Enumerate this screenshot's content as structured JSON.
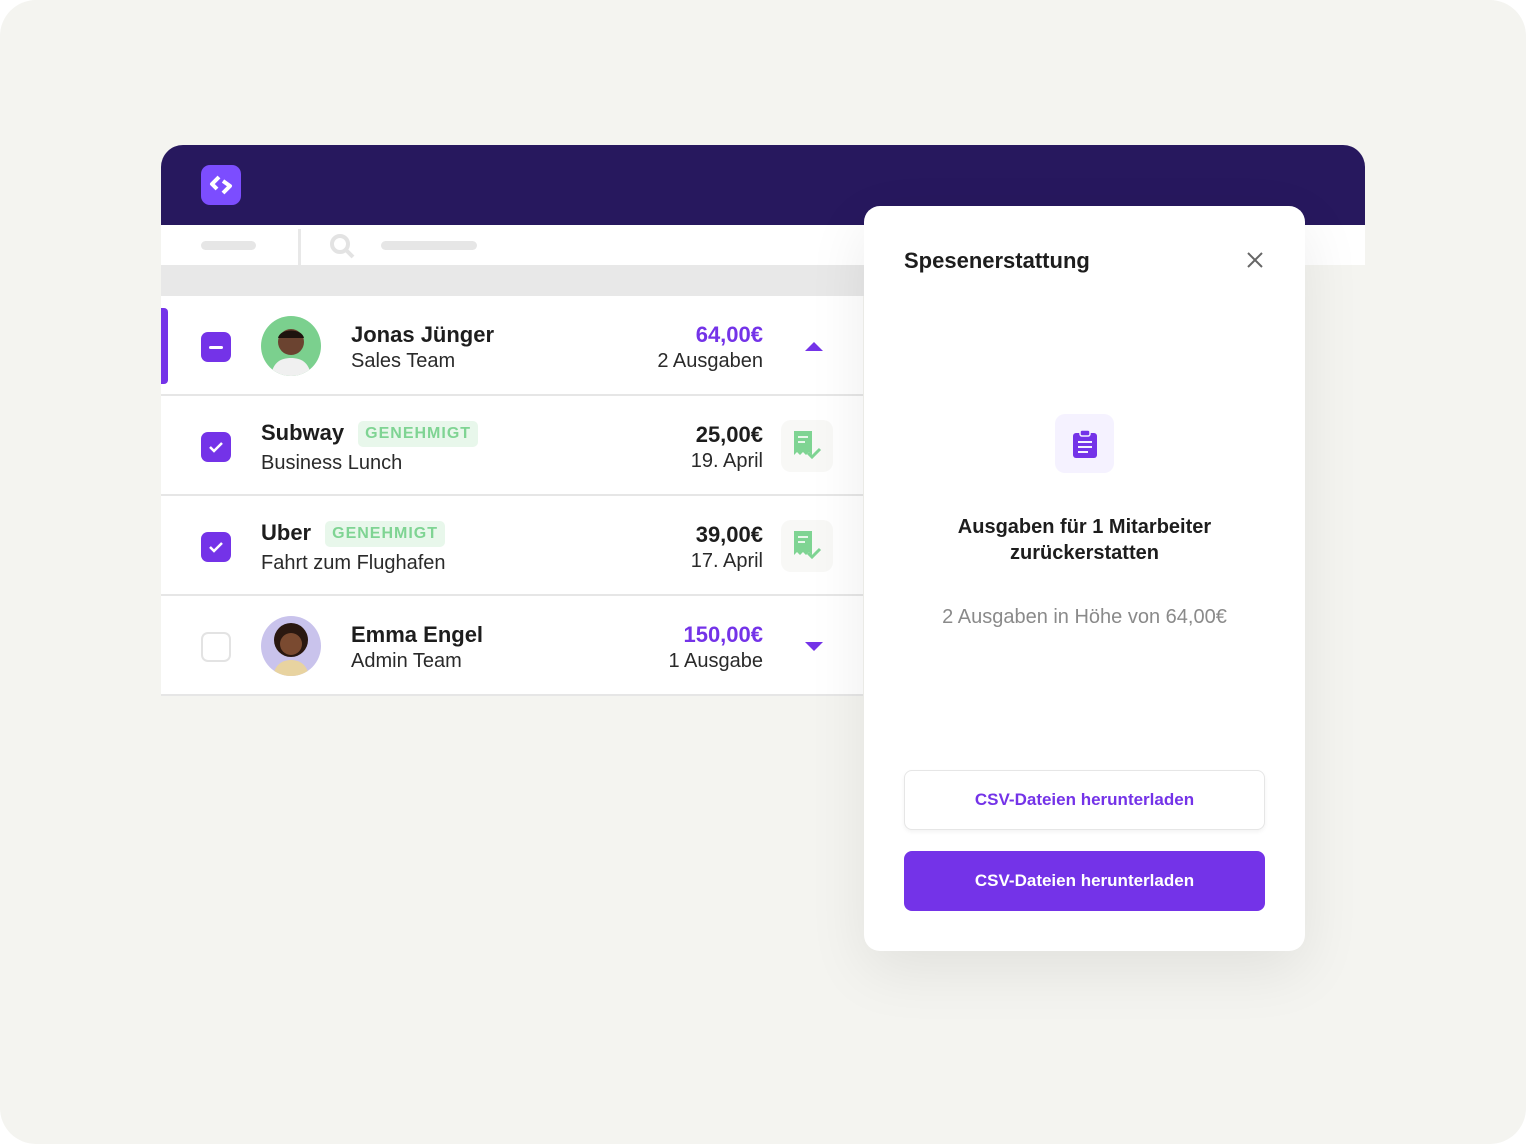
{
  "app": {
    "logo": "app-logo",
    "accent": "#7433e8",
    "header_color": "#27185e"
  },
  "rows": [
    {
      "type": "employee",
      "name": "Jonas Jünger",
      "team": "Sales Team",
      "amount": "64,00€",
      "count": "2 Ausgaben",
      "checkbox": "indeterminate",
      "expanded": true
    },
    {
      "type": "expense",
      "name": "Subway",
      "status": "GENEHMIGT",
      "desc": "Business Lunch",
      "amount": "25,00€",
      "date": "19. April",
      "checkbox": "checked"
    },
    {
      "type": "expense",
      "name": "Uber",
      "status": "GENEHMIGT",
      "desc": "Fahrt zum Flughafen",
      "amount": "39,00€",
      "date": "17. April",
      "checkbox": "checked"
    },
    {
      "type": "employee",
      "name": "Emma Engel",
      "team": "Admin Team",
      "amount": "150,00€",
      "count": "1 Ausgabe",
      "checkbox": "unchecked",
      "expanded": false
    }
  ],
  "modal": {
    "title": "Spesenerstattung",
    "icon": "clipboard-icon",
    "heading_line1": "Ausgaben für 1 Mitarbeiter",
    "heading_line2": "zurückerstatten",
    "summary": "2 Ausgaben in Höhe von 64,00€",
    "secondary_button": "CSV-Dateien herunterladen",
    "primary_button": "CSV-Dateien herunterladen"
  }
}
